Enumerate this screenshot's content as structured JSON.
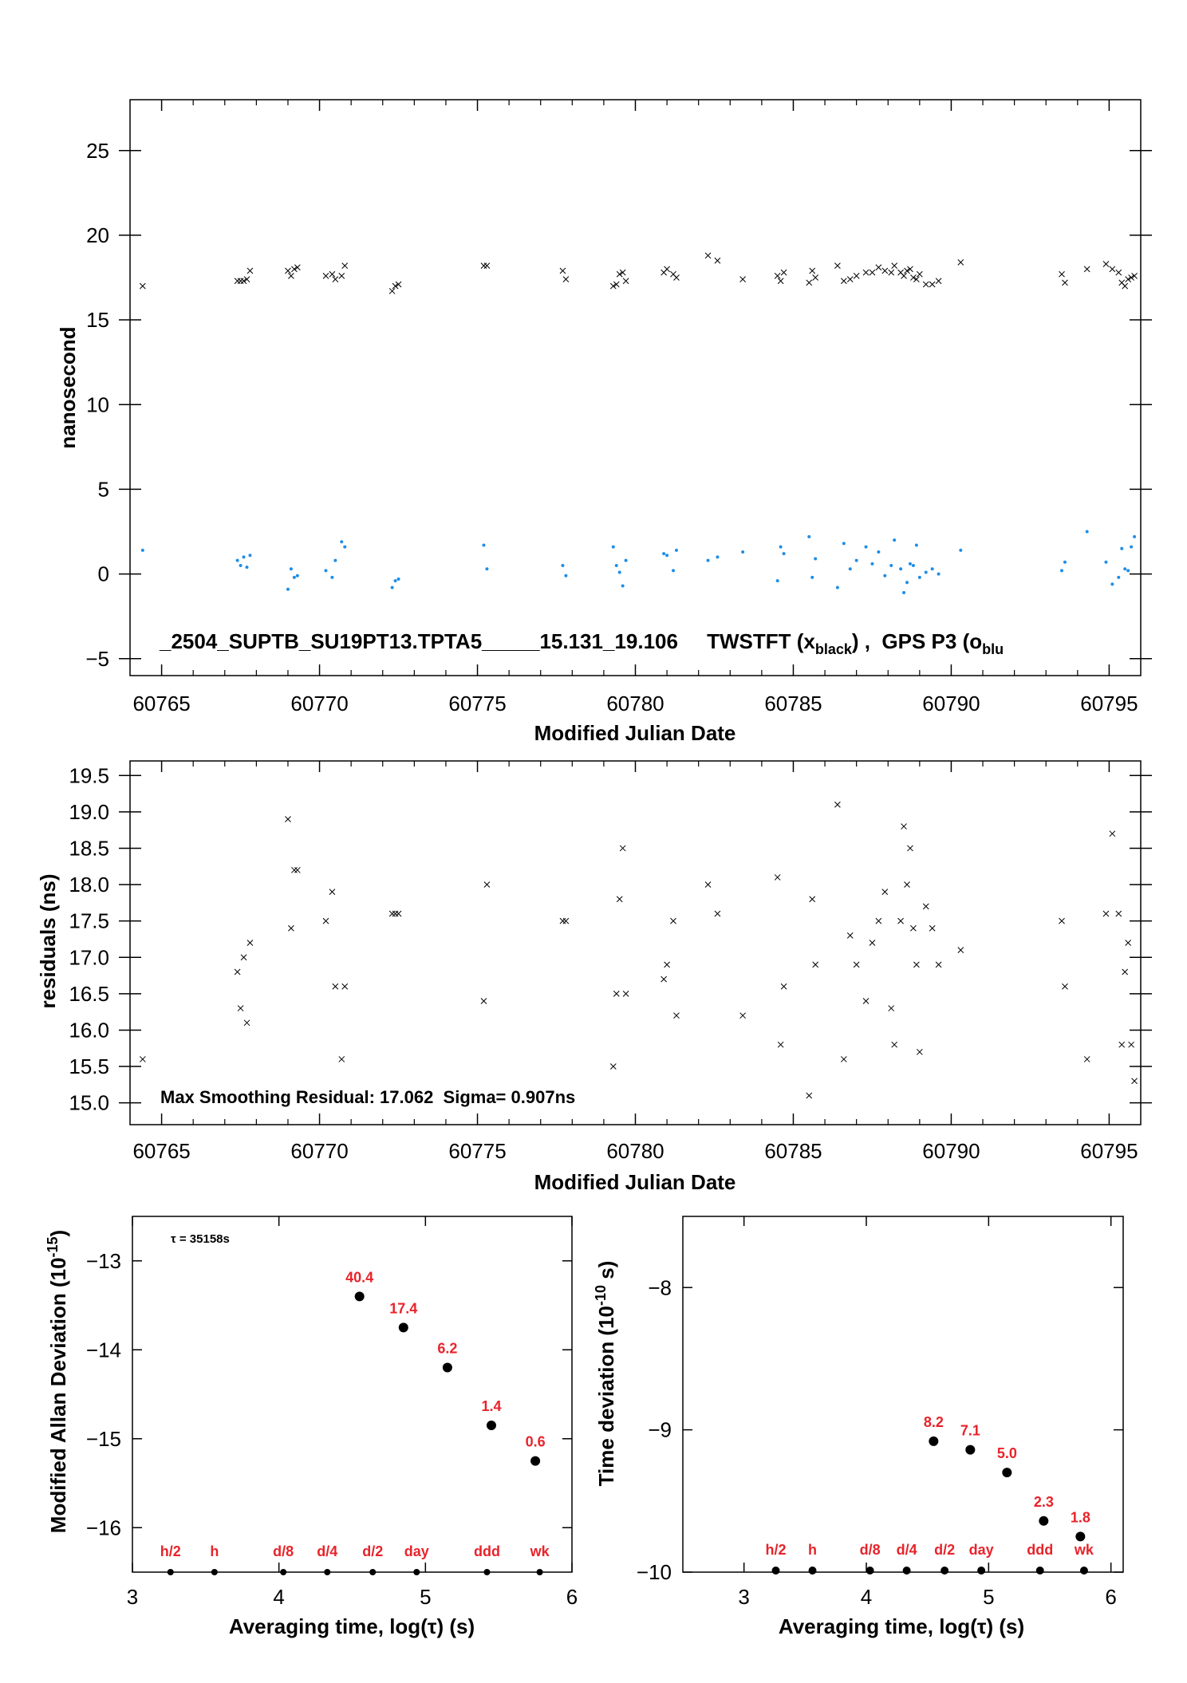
{
  "chart_data": [
    {
      "type": "scatter",
      "ylabel": "nanosecond",
      "xlabel": "Modified Julian Date",
      "xlim": [
        60764,
        60796
      ],
      "ylim": [
        -6,
        28
      ],
      "x_ticks": [
        60765,
        60770,
        60775,
        60780,
        60785,
        60790,
        60795
      ],
      "y_ticks": [
        -5,
        0,
        5,
        10,
        15,
        20,
        25
      ],
      "annotation": "_2504_SUPTB_SU19PT13.TPTA5_____15.131_19.106     TWSTFT (x",
      "annotation_sub1": "black",
      "annotation_mid": ") ,  GPS P3 (o",
      "annotation_sub2": "blu",
      "series": [
        {
          "marker": "x",
          "color": "#000000",
          "points": [
            [
              60764.4,
              17.0
            ],
            [
              60767.4,
              17.3
            ],
            [
              60767.5,
              17.3
            ],
            [
              60767.6,
              17.3
            ],
            [
              60767.7,
              17.4
            ],
            [
              60767.8,
              17.9
            ],
            [
              60769.0,
              17.9
            ],
            [
              60769.1,
              17.6
            ],
            [
              60769.2,
              18.0
            ],
            [
              60769.3,
              18.1
            ],
            [
              60770.2,
              17.6
            ],
            [
              60770.4,
              17.7
            ],
            [
              60770.5,
              17.4
            ],
            [
              60770.7,
              17.6
            ],
            [
              60770.8,
              18.2
            ],
            [
              60772.3,
              16.7
            ],
            [
              60772.4,
              17.0
            ],
            [
              60772.5,
              17.1
            ],
            [
              60775.2,
              18.2
            ],
            [
              60775.3,
              18.2
            ],
            [
              60777.7,
              17.9
            ],
            [
              60777.8,
              17.4
            ],
            [
              60779.3,
              17.0
            ],
            [
              60779.4,
              17.1
            ],
            [
              60779.5,
              17.7
            ],
            [
              60779.6,
              17.8
            ],
            [
              60779.7,
              17.3
            ],
            [
              60780.9,
              17.8
            ],
            [
              60781.0,
              18.0
            ],
            [
              60781.2,
              17.7
            ],
            [
              60781.3,
              17.5
            ],
            [
              60782.3,
              18.8
            ],
            [
              60782.6,
              18.5
            ],
            [
              60783.4,
              17.4
            ],
            [
              60784.5,
              17.6
            ],
            [
              60784.6,
              17.3
            ],
            [
              60784.7,
              17.8
            ],
            [
              60785.5,
              17.2
            ],
            [
              60785.6,
              17.9
            ],
            [
              60785.7,
              17.5
            ],
            [
              60786.4,
              18.2
            ],
            [
              60786.6,
              17.3
            ],
            [
              60786.8,
              17.4
            ],
            [
              60787.0,
              17.6
            ],
            [
              60787.3,
              17.8
            ],
            [
              60787.5,
              17.8
            ],
            [
              60787.7,
              18.1
            ],
            [
              60787.9,
              17.9
            ],
            [
              60788.1,
              17.8
            ],
            [
              60788.2,
              18.2
            ],
            [
              60788.4,
              17.8
            ],
            [
              60788.5,
              17.6
            ],
            [
              60788.6,
              17.9
            ],
            [
              60788.7,
              18.0
            ],
            [
              60788.8,
              17.5
            ],
            [
              60788.9,
              17.4
            ],
            [
              60789.0,
              17.7
            ],
            [
              60789.2,
              17.1
            ],
            [
              60789.4,
              17.1
            ],
            [
              60789.6,
              17.3
            ],
            [
              60790.3,
              18.4
            ],
            [
              60793.5,
              17.7
            ],
            [
              60793.6,
              17.2
            ],
            [
              60794.3,
              18.0
            ],
            [
              60794.9,
              18.3
            ],
            [
              60795.1,
              18.0
            ],
            [
              60795.3,
              17.8
            ],
            [
              60795.4,
              17.2
            ],
            [
              60795.5,
              17.0
            ],
            [
              60795.6,
              17.4
            ],
            [
              60795.7,
              17.5
            ],
            [
              60795.8,
              17.6
            ]
          ]
        },
        {
          "marker": "dot",
          "color": "#1e8ee8",
          "points": [
            [
              60764.4,
              1.4
            ],
            [
              60767.4,
              0.8
            ],
            [
              60767.5,
              0.5
            ],
            [
              60767.6,
              1.0
            ],
            [
              60767.7,
              0.4
            ],
            [
              60767.8,
              1.1
            ],
            [
              60769.0,
              -0.9
            ],
            [
              60769.1,
              0.3
            ],
            [
              60769.2,
              -0.2
            ],
            [
              60769.3,
              -0.1
            ],
            [
              60770.2,
              0.2
            ],
            [
              60770.4,
              -0.2
            ],
            [
              60770.5,
              0.8
            ],
            [
              60770.7,
              1.9
            ],
            [
              60770.8,
              1.6
            ],
            [
              60772.3,
              -0.8
            ],
            [
              60772.4,
              -0.4
            ],
            [
              60772.5,
              -0.3
            ],
            [
              60775.2,
              1.7
            ],
            [
              60775.3,
              0.3
            ],
            [
              60777.7,
              0.5
            ],
            [
              60777.8,
              -0.1
            ],
            [
              60779.3,
              1.6
            ],
            [
              60779.4,
              0.5
            ],
            [
              60779.5,
              0.1
            ],
            [
              60779.6,
              -0.7
            ],
            [
              60779.7,
              0.8
            ],
            [
              60780.9,
              1.2
            ],
            [
              60781.0,
              1.1
            ],
            [
              60781.2,
              0.2
            ],
            [
              60781.3,
              1.4
            ],
            [
              60782.3,
              0.8
            ],
            [
              60782.6,
              1.0
            ],
            [
              60783.4,
              1.3
            ],
            [
              60784.5,
              -0.4
            ],
            [
              60784.6,
              1.6
            ],
            [
              60784.7,
              1.2
            ],
            [
              60785.5,
              2.2
            ],
            [
              60785.6,
              -0.2
            ],
            [
              60785.7,
              0.9
            ],
            [
              60786.4,
              -0.8
            ],
            [
              60786.6,
              1.8
            ],
            [
              60786.8,
              0.3
            ],
            [
              60787.0,
              0.8
            ],
            [
              60787.3,
              1.6
            ],
            [
              60787.5,
              0.6
            ],
            [
              60787.7,
              1.3
            ],
            [
              60787.9,
              -0.1
            ],
            [
              60788.1,
              0.5
            ],
            [
              60788.2,
              2.0
            ],
            [
              60788.4,
              0.3
            ],
            [
              60788.5,
              -1.1
            ],
            [
              60788.6,
              -0.5
            ],
            [
              60788.7,
              0.6
            ],
            [
              60788.8,
              0.5
            ],
            [
              60788.9,
              1.7
            ],
            [
              60789.0,
              -0.2
            ],
            [
              60789.2,
              0.1
            ],
            [
              60789.4,
              0.3
            ],
            [
              60789.6,
              0.0
            ],
            [
              60790.3,
              1.4
            ],
            [
              60793.5,
              0.2
            ],
            [
              60793.6,
              0.7
            ],
            [
              60794.3,
              2.5
            ],
            [
              60794.9,
              0.7
            ],
            [
              60795.1,
              -0.6
            ],
            [
              60795.3,
              -0.2
            ],
            [
              60795.4,
              1.5
            ],
            [
              60795.5,
              0.3
            ],
            [
              60795.6,
              0.2
            ],
            [
              60795.7,
              1.6
            ],
            [
              60795.8,
              2.2
            ]
          ]
        }
      ]
    },
    {
      "type": "scatter",
      "ylabel": "residuals (ns)",
      "xlabel": "Modified Julian Date",
      "xlim": [
        60764,
        60796
      ],
      "ylim": [
        14.7,
        19.7
      ],
      "x_ticks": [
        60765,
        60770,
        60775,
        60780,
        60785,
        60790,
        60795
      ],
      "y_ticks": [
        15.0,
        15.5,
        16.0,
        16.5,
        17.0,
        17.5,
        18.0,
        18.5,
        19.0,
        19.5
      ],
      "y_tick_labels": [
        "15.0",
        "15.5",
        "16.0",
        "16.5",
        "17.0",
        "17.5",
        "18.0",
        "18.5",
        "19.0",
        "19.5"
      ],
      "annotation": "Max Smoothing Residual: 17.062  Sigma= 0.907ns",
      "series": [
        {
          "marker": "x",
          "color": "#000000",
          "points": [
            [
              60764.4,
              15.6
            ],
            [
              60767.4,
              16.8
            ],
            [
              60767.5,
              16.3
            ],
            [
              60767.6,
              17.0
            ],
            [
              60767.7,
              16.1
            ],
            [
              60767.8,
              17.2
            ],
            [
              60769.0,
              18.9
            ],
            [
              60769.1,
              17.4
            ],
            [
              60769.2,
              18.2
            ],
            [
              60769.3,
              18.2
            ],
            [
              60770.2,
              17.5
            ],
            [
              60770.4,
              17.9
            ],
            [
              60770.5,
              16.6
            ],
            [
              60770.7,
              15.6
            ],
            [
              60770.8,
              16.6
            ],
            [
              60772.3,
              17.6
            ],
            [
              60772.4,
              17.6
            ],
            [
              60772.5,
              17.6
            ],
            [
              60775.2,
              16.4
            ],
            [
              60775.3,
              18.0
            ],
            [
              60777.7,
              17.5
            ],
            [
              60777.8,
              17.5
            ],
            [
              60779.3,
              15.5
            ],
            [
              60779.4,
              16.5
            ],
            [
              60779.5,
              17.8
            ],
            [
              60779.6,
              18.5
            ],
            [
              60779.7,
              16.5
            ],
            [
              60780.9,
              16.7
            ],
            [
              60781.0,
              16.9
            ],
            [
              60781.2,
              17.5
            ],
            [
              60781.3,
              16.2
            ],
            [
              60782.3,
              18.0
            ],
            [
              60782.6,
              17.6
            ],
            [
              60783.4,
              16.2
            ],
            [
              60784.5,
              18.1
            ],
            [
              60784.6,
              15.8
            ],
            [
              60784.7,
              16.6
            ],
            [
              60785.5,
              15.1
            ],
            [
              60785.6,
              17.8
            ],
            [
              60785.7,
              16.9
            ],
            [
              60786.4,
              19.1
            ],
            [
              60786.6,
              15.6
            ],
            [
              60786.8,
              17.3
            ],
            [
              60787.0,
              16.9
            ],
            [
              60787.3,
              16.4
            ],
            [
              60787.5,
              17.2
            ],
            [
              60787.7,
              17.5
            ],
            [
              60787.9,
              17.9
            ],
            [
              60788.1,
              16.3
            ],
            [
              60788.2,
              15.8
            ],
            [
              60788.4,
              17.5
            ],
            [
              60788.5,
              18.8
            ],
            [
              60788.6,
              18.0
            ],
            [
              60788.7,
              18.5
            ],
            [
              60788.8,
              17.4
            ],
            [
              60788.9,
              16.9
            ],
            [
              60789.0,
              15.7
            ],
            [
              60789.2,
              17.7
            ],
            [
              60789.4,
              17.4
            ],
            [
              60789.6,
              16.9
            ],
            [
              60790.3,
              17.1
            ],
            [
              60793.5,
              17.5
            ],
            [
              60793.6,
              16.6
            ],
            [
              60794.3,
              15.6
            ],
            [
              60794.9,
              17.6
            ],
            [
              60795.1,
              18.7
            ],
            [
              60795.3,
              17.6
            ],
            [
              60795.4,
              15.8
            ],
            [
              60795.5,
              16.8
            ],
            [
              60795.6,
              17.2
            ],
            [
              60795.7,
              15.8
            ],
            [
              60795.8,
              15.3
            ]
          ]
        }
      ]
    },
    {
      "type": "scatter",
      "ylabel": "Modified Allan Deviation (10",
      "ylabel_sup": "-15",
      "ylabel_tail": ")",
      "xlabel": "Averaging time, log(τ) (s)",
      "xlim": [
        3,
        6
      ],
      "ylim": [
        -16.5,
        -12.5
      ],
      "x_ticks": [
        3,
        4,
        5,
        6
      ],
      "y_ticks": [
        -16,
        -15,
        -14,
        -13
      ],
      "annotation": "τ = 35158s",
      "points": [
        [
          4.55,
          -13.4
        ],
        [
          4.85,
          -13.75
        ],
        [
          5.15,
          -14.2
        ],
        [
          5.45,
          -14.85
        ],
        [
          5.75,
          -15.25
        ]
      ],
      "point_labels": [
        "40.4",
        "17.4",
        "6.2",
        "1.4",
        "0.6"
      ],
      "baseline_markers": [
        {
          "x": 3.26,
          "label": "h/2"
        },
        {
          "x": 3.56,
          "label": "h"
        },
        {
          "x": 4.03,
          "label": "d/8"
        },
        {
          "x": 4.33,
          "label": "d/4"
        },
        {
          "x": 4.64,
          "label": "d/2"
        },
        {
          "x": 4.94,
          "label": "day"
        },
        {
          "x": 5.42,
          "label": "ddd"
        },
        {
          "x": 5.78,
          "label": "wk"
        }
      ]
    },
    {
      "type": "scatter",
      "ylabel": "Time deviation (10",
      "ylabel_sup": "-10",
      "ylabel_tail": " s)",
      "xlabel": "Averaging time, log(τ) (s)",
      "xlim": [
        2.5,
        6.1
      ],
      "ylim": [
        -10,
        -7.5
      ],
      "x_ticks": [
        3,
        4,
        5,
        6
      ],
      "y_ticks": [
        -10,
        -9,
        -8
      ],
      "points": [
        [
          4.55,
          -9.08
        ],
        [
          4.85,
          -9.14
        ],
        [
          5.15,
          -9.3
        ],
        [
          5.45,
          -9.64
        ],
        [
          5.75,
          -9.75
        ]
      ],
      "point_labels": [
        "8.2",
        "7.1",
        "5.0",
        "2.3",
        "1.8"
      ],
      "baseline_markers": [
        {
          "x": 3.26,
          "label": "h/2"
        },
        {
          "x": 3.56,
          "label": "h"
        },
        {
          "x": 4.03,
          "label": "d/8"
        },
        {
          "x": 4.33,
          "label": "d/4"
        },
        {
          "x": 4.64,
          "label": "d/2"
        },
        {
          "x": 4.94,
          "label": "day"
        },
        {
          "x": 5.42,
          "label": "ddd"
        },
        {
          "x": 5.78,
          "label": "wk"
        }
      ]
    }
  ]
}
